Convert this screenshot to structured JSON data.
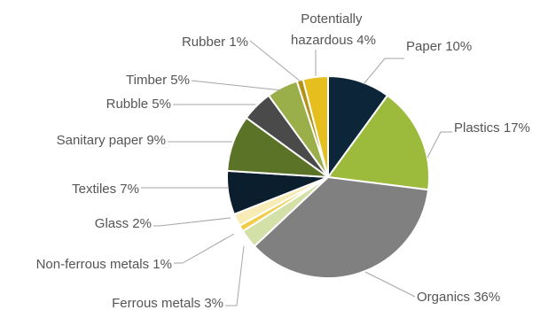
{
  "chart_data": {
    "type": "pie",
    "title": "",
    "legend": "none",
    "slices": [
      {
        "name": "Paper",
        "value": 10,
        "label": "Paper 10%",
        "color": "#0d2538"
      },
      {
        "name": "Plastics",
        "value": 17,
        "label": "Plastics 17%",
        "color": "#9cbb3c"
      },
      {
        "name": "Organics",
        "value": 36,
        "label": "Organics 36%",
        "color": "#808080"
      },
      {
        "name": "Ferrous metals",
        "value": 3,
        "label": "Ferrous metals 3%",
        "color": "#d3e1a8"
      },
      {
        "name": "Non-ferrous metals",
        "value": 1,
        "label": "Non-ferrous metals 1%",
        "color": "#f2cd4a"
      },
      {
        "name": "Glass",
        "value": 2,
        "label": "Glass 2%",
        "color": "#f8ecb6"
      },
      {
        "name": "Textiles",
        "value": 7,
        "label": "Textiles 7%",
        "color": "#0b1e2d"
      },
      {
        "name": "Sanitary paper",
        "value": 9,
        "label": "Sanitary paper 9%",
        "color": "#5b7326"
      },
      {
        "name": "Rubble",
        "value": 5,
        "label": "Rubble 5%",
        "color": "#4a4a4a"
      },
      {
        "name": "Timber",
        "value": 5,
        "label": "Timber 5%",
        "color": "#9aae4a"
      },
      {
        "name": "Rubber",
        "value": 1,
        "label": "Rubber 1%",
        "color": "#b29116"
      },
      {
        "name": "Potentially hazardous",
        "value": 4,
        "label_lines": [
          "Potentially",
          "hazardous 4%"
        ],
        "color": "#e6bf1e"
      }
    ]
  }
}
